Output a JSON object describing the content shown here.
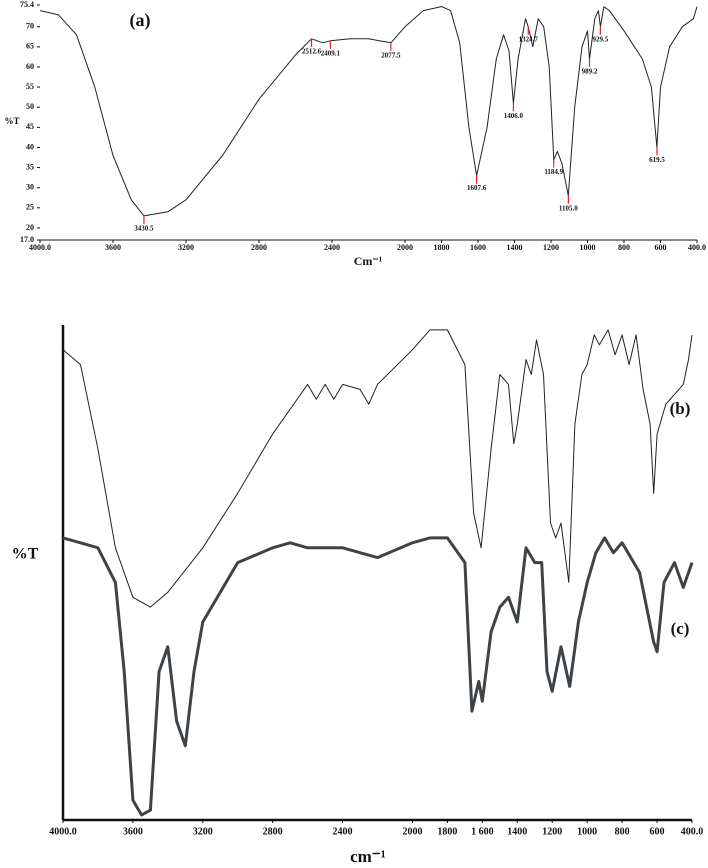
{
  "chart_data": [
    {
      "type": "line",
      "annotation": "(a)",
      "y_label": "%T",
      "x_label": "Cm⁻¹",
      "xlim": [
        4000,
        400
      ],
      "ylim": [
        17,
        75.4
      ],
      "grid": false,
      "xticks": [
        {
          "value": 4000,
          "label": "4000.0"
        },
        3600,
        3200,
        2800,
        2400,
        2000,
        1800,
        1600,
        1400,
        1200,
        1000,
        800,
        600,
        {
          "value": 400,
          "label": "400.0"
        }
      ],
      "yticks": [
        {
          "value": 17,
          "label": "17.0"
        },
        20,
        25,
        30,
        35,
        40,
        45,
        50,
        55,
        60,
        65,
        70,
        75.4
      ],
      "series": [
        {
          "color": "#222222",
          "x": [
            4000,
            3900,
            3800,
            3700,
            3600,
            3500,
            3430.5,
            3300,
            3200,
            3000,
            2800,
            2600,
            2512.6,
            2450,
            2409.1,
            2300,
            2200,
            2077.5,
            2000,
            1900,
            1800,
            1750,
            1700,
            1650,
            1607.6,
            1550,
            1500,
            1460,
            1430,
            1406,
            1380,
            1340,
            1324.7,
            1300,
            1270,
            1240,
            1210,
            1184.9,
            1165,
            1140,
            1105,
            1070,
            1030,
            1000,
            989.2,
            960,
            940,
            929.5,
            910,
            880,
            800,
            700,
            650,
            619.5,
            600,
            550,
            480,
            420,
            400
          ],
          "values": [
            74,
            73,
            68,
            55,
            38,
            27,
            23,
            24,
            27,
            38,
            52,
            63,
            67,
            66,
            66.5,
            67,
            67,
            66,
            70,
            74,
            75,
            74,
            66,
            45,
            33,
            45,
            62,
            68,
            64,
            51,
            62,
            72,
            70,
            65,
            72,
            70,
            60,
            37,
            39,
            36,
            28,
            50,
            65,
            69,
            62,
            72,
            74,
            70,
            75,
            74,
            69,
            62,
            55,
            40,
            55,
            65,
            70,
            72,
            75
          ]
        }
      ],
      "peak_color": "#e8202a",
      "peak_x": [
        3430.5,
        2512.6,
        2409.1,
        2077.5,
        1607.6,
        1406.0,
        1324.7,
        1184.9,
        1105.0,
        989.2,
        929.5,
        619.5
      ],
      "peak_labels": [
        "3430.5",
        "2512.6",
        "2409.1",
        "2077.5",
        "1607.6",
        "1406.0",
        "1324.7",
        "1184.9",
        "1105.0",
        "989.2",
        "929.5",
        "619.5"
      ]
    },
    {
      "type": "line",
      "y_label": "%T",
      "x_label": "cm⁻¹",
      "xlim": [
        4000,
        400
      ],
      "ylim": [
        0,
        100
      ],
      "grid": false,
      "xticks": [
        {
          "value": 4000,
          "label": "4000.0"
        },
        3600,
        3200,
        2800,
        2400,
        2000,
        1800,
        {
          "value": 1600,
          "label": "1 600"
        },
        1400,
        1200,
        1000,
        800,
        600,
        {
          "value": 400,
          "label": "400.0"
        }
      ],
      "series": [
        {
          "name": "(b)",
          "color": "#222222",
          "x": [
            4000,
            3900,
            3800,
            3700,
            3600,
            3500,
            3400,
            3200,
            3000,
            2800,
            2600,
            2550,
            2500,
            2450,
            2400,
            2300,
            2250,
            2200,
            2000,
            1900,
            1800,
            1700,
            1650,
            1607,
            1550,
            1500,
            1450,
            1420,
            1400,
            1350,
            1320,
            1290,
            1250,
            1210,
            1180,
            1150,
            1105,
            1070,
            1030,
            1000,
            960,
            930,
            880,
            840,
            800,
            760,
            720,
            680,
            640,
            619,
            600,
            550,
            450,
            420,
            400
          ],
          "values": [
            95,
            92,
            75,
            55,
            45,
            43,
            46,
            55,
            66,
            78,
            88,
            85,
            88,
            85,
            88,
            87,
            84,
            88,
            95,
            99,
            99,
            92,
            62,
            55,
            75,
            90,
            88,
            76,
            80,
            93,
            90,
            97,
            90,
            60,
            57,
            60,
            48,
            80,
            90,
            92,
            98,
            96,
            99,
            94,
            98,
            92,
            98,
            87,
            80,
            66,
            78,
            84,
            88,
            93,
            98
          ]
        },
        {
          "name": "(c)",
          "color": "#3d4347",
          "x": [
            4000,
            3900,
            3800,
            3700,
            3650,
            3600,
            3550,
            3500,
            3450,
            3400,
            3350,
            3300,
            3250,
            3200,
            3000,
            2800,
            2700,
            2600,
            2400,
            2200,
            2000,
            1900,
            1800,
            1700,
            1660,
            1620,
            1600,
            1550,
            1500,
            1450,
            1400,
            1350,
            1300,
            1260,
            1230,
            1200,
            1150,
            1100,
            1050,
            1000,
            950,
            900,
            850,
            800,
            700,
            620,
            600,
            560,
            500,
            450,
            400
          ],
          "values": [
            57,
            56,
            55,
            48,
            30,
            4,
            1,
            2,
            30,
            35,
            20,
            15,
            30,
            40,
            52,
            55,
            56,
            55,
            55,
            53,
            56,
            57,
            57,
            52,
            22,
            28,
            24,
            38,
            43,
            45,
            40,
            55,
            52,
            52,
            30,
            26,
            35,
            27,
            40,
            48,
            54,
            57,
            54,
            56,
            50,
            36,
            34,
            48,
            52,
            47,
            52
          ]
        }
      ]
    }
  ]
}
